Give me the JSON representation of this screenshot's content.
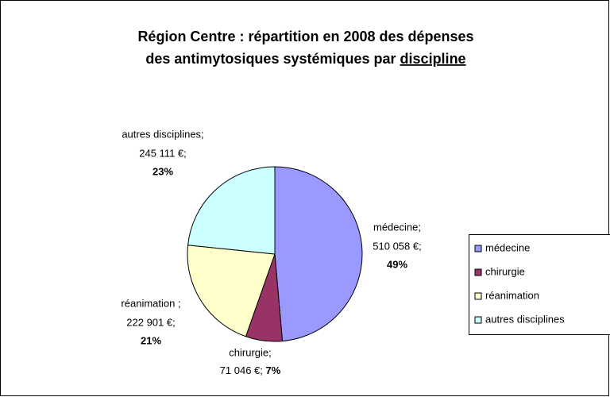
{
  "chart_data": {
    "type": "pie",
    "title": [
      "Région Centre : répartition en 2008 des dépenses",
      "des antimytosiques systémiques par",
      "discipline"
    ],
    "categories": [
      "médecine",
      "chirurgie",
      "réanimation",
      "autres disciplines"
    ],
    "label_names": [
      "médecine;",
      "chirurgie;",
      "réanimation ;",
      "autres disciplines;"
    ],
    "values": [
      510058,
      71046,
      222901,
      245111
    ],
    "value_labels": [
      "510 058 €;",
      "71 046 €;",
      "222 901 €;",
      "245 111 €;"
    ],
    "percent_labels": [
      "49%",
      "7%",
      "21%",
      "23%"
    ],
    "colors": [
      "#9999ff",
      "#993366",
      "#ffffcc",
      "#ccffff"
    ],
    "legend": "right"
  }
}
